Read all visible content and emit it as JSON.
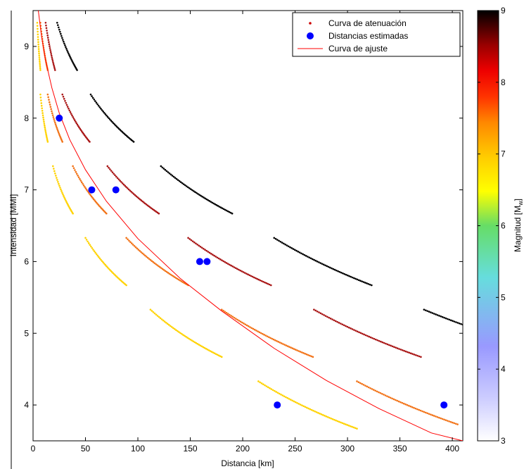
{
  "chart_data": {
    "type": "scatter",
    "xlabel": "Distancia [km]",
    "ylabel": "Intensidad [MMI]",
    "xlim": [
      0,
      410
    ],
    "ylim": [
      3.5,
      9.5
    ],
    "xticks": [
      "0",
      "50",
      "100",
      "150",
      "200",
      "250",
      "300",
      "350",
      "400"
    ],
    "yticks": [
      "4",
      "5",
      "6",
      "7",
      "8",
      "9"
    ],
    "grid": false,
    "legend": {
      "placement": "top-right",
      "entries": [
        "Curva de atenuación",
        "Distancias estimadas",
        "Curva de ajuste"
      ]
    },
    "colorbar": {
      "label": "Magnitud [M",
      "label_sub": "w",
      "label_end": "]",
      "range": [
        3,
        9
      ],
      "ticks": [
        "3",
        "4",
        "5",
        "6",
        "7",
        "8",
        "9"
      ],
      "colormap": "hot-reversed"
    },
    "attenuation_curves": [
      {
        "magnitude": 6,
        "x": [
          4,
          7
        ],
        "y": [
          9.33,
          8.67
        ]
      },
      {
        "magnitude": 7,
        "x": [
          7,
          14
        ],
        "y": [
          9.33,
          8.67
        ]
      },
      {
        "magnitude": 8,
        "x": [
          12,
          21
        ],
        "y": [
          9.33,
          8.67
        ]
      },
      {
        "magnitude": 9,
        "x": [
          23,
          42
        ],
        "y": [
          9.33,
          8.67
        ]
      },
      {
        "magnitude": 6,
        "x": [
          7,
          14
        ],
        "y": [
          8.33,
          7.67
        ]
      },
      {
        "magnitude": 7,
        "x": [
          14,
          28
        ],
        "y": [
          8.33,
          7.67
        ]
      },
      {
        "magnitude": 8,
        "x": [
          28,
          54
        ],
        "y": [
          8.33,
          7.67
        ]
      },
      {
        "magnitude": 9,
        "x": [
          55,
          96
        ],
        "y": [
          8.33,
          7.67
        ]
      },
      {
        "magnitude": 6,
        "x": [
          19,
          38
        ],
        "y": [
          7.33,
          6.67
        ]
      },
      {
        "magnitude": 7,
        "x": [
          38,
          70
        ],
        "y": [
          7.33,
          6.67
        ]
      },
      {
        "magnitude": 8,
        "x": [
          71,
          120
        ],
        "y": [
          7.33,
          6.67
        ]
      },
      {
        "magnitude": 9,
        "x": [
          122,
          190
        ],
        "y": [
          7.33,
          6.67
        ]
      },
      {
        "magnitude": 6,
        "x": [
          50,
          89
        ],
        "y": [
          6.33,
          5.67
        ]
      },
      {
        "magnitude": 7,
        "x": [
          89,
          148
        ],
        "y": [
          6.33,
          5.67
        ]
      },
      {
        "magnitude": 8,
        "x": [
          148,
          227
        ],
        "y": [
          6.33,
          5.67
        ]
      },
      {
        "magnitude": 9,
        "x": [
          230,
          323
        ],
        "y": [
          6.33,
          5.67
        ]
      },
      {
        "magnitude": 6,
        "x": [
          112,
          180
        ],
        "y": [
          5.33,
          4.67
        ]
      },
      {
        "magnitude": 7,
        "x": [
          180,
          267
        ],
        "y": [
          5.33,
          4.67
        ]
      },
      {
        "magnitude": 8,
        "x": [
          268,
          370
        ],
        "y": [
          5.33,
          4.67
        ]
      },
      {
        "magnitude": 9,
        "x": [
          373,
          410
        ],
        "y": [
          5.33,
          5.12
        ]
      },
      {
        "magnitude": 6,
        "x": [
          215,
          309
        ],
        "y": [
          4.33,
          3.67
        ]
      },
      {
        "magnitude": 7,
        "x": [
          309,
          405
        ],
        "y": [
          4.33,
          3.73
        ]
      }
    ],
    "estimated_distances": {
      "x": [
        25,
        56,
        79,
        159,
        166,
        233,
        392
      ],
      "y": [
        8,
        7,
        7,
        6,
        6,
        4,
        4
      ],
      "color": "#0000ff"
    },
    "fit_curve": {
      "color": "#ff0000",
      "x": [
        5,
        8,
        12,
        18,
        25,
        35,
        50,
        70,
        100,
        140,
        180,
        230,
        280,
        330,
        380,
        410
      ],
      "y": [
        9.5,
        9.15,
        8.8,
        8.42,
        8.07,
        7.7,
        7.28,
        6.84,
        6.32,
        5.77,
        5.31,
        4.79,
        4.34,
        3.95,
        3.61,
        3.5
      ]
    }
  }
}
